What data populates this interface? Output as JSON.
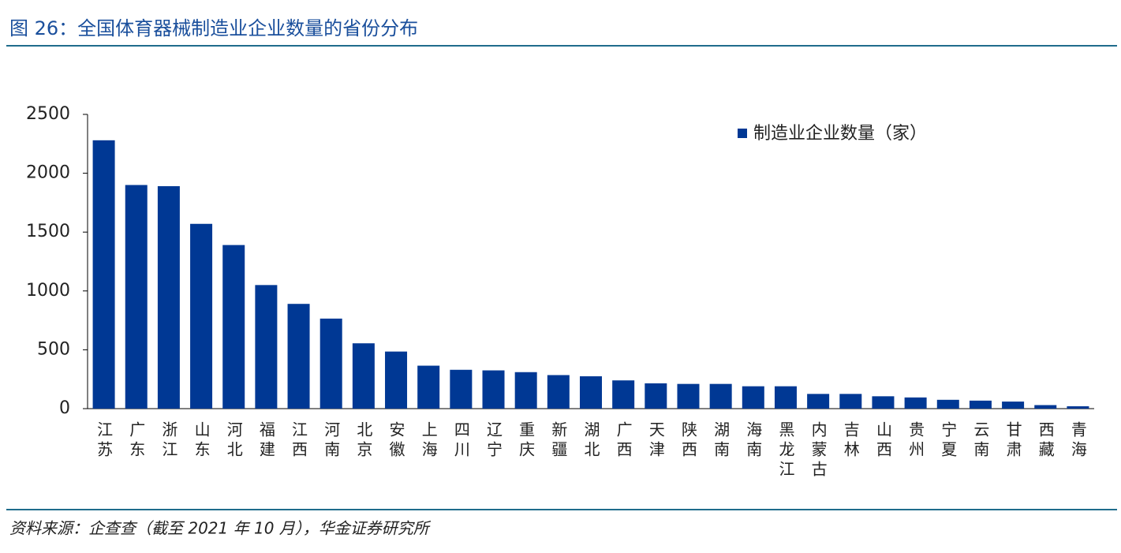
{
  "title": "图 26：全国体育器械制造业企业数量的省份分布",
  "source": "资料来源：企查查（截至 2021 年 10 月），华金证券研究所",
  "chart_data": {
    "type": "bar",
    "categories": [
      "江苏",
      "广东",
      "浙江",
      "山东",
      "河北",
      "福建",
      "江西",
      "河南",
      "北京",
      "安徽",
      "上海",
      "四川",
      "辽宁",
      "重庆",
      "新疆",
      "湖北",
      "广西",
      "天津",
      "陕西",
      "湖南",
      "海南",
      "黑龙江",
      "内蒙古",
      "吉林",
      "山西",
      "贵州",
      "宁夏",
      "云南",
      "甘肃",
      "西藏",
      "青海"
    ],
    "series": [
      {
        "name": "制造业企业数量（家）",
        "color": "#003894",
        "values": [
          2280,
          1900,
          1890,
          1570,
          1390,
          1050,
          890,
          765,
          555,
          485,
          365,
          330,
          325,
          310,
          285,
          275,
          240,
          215,
          210,
          210,
          190,
          190,
          125,
          125,
          105,
          95,
          75,
          68,
          60,
          30,
          20
        ]
      }
    ],
    "ylim": [
      0,
      2500
    ],
    "yticks": [
      0,
      500,
      1000,
      1500,
      2000,
      2500
    ],
    "legend": "upper right"
  }
}
